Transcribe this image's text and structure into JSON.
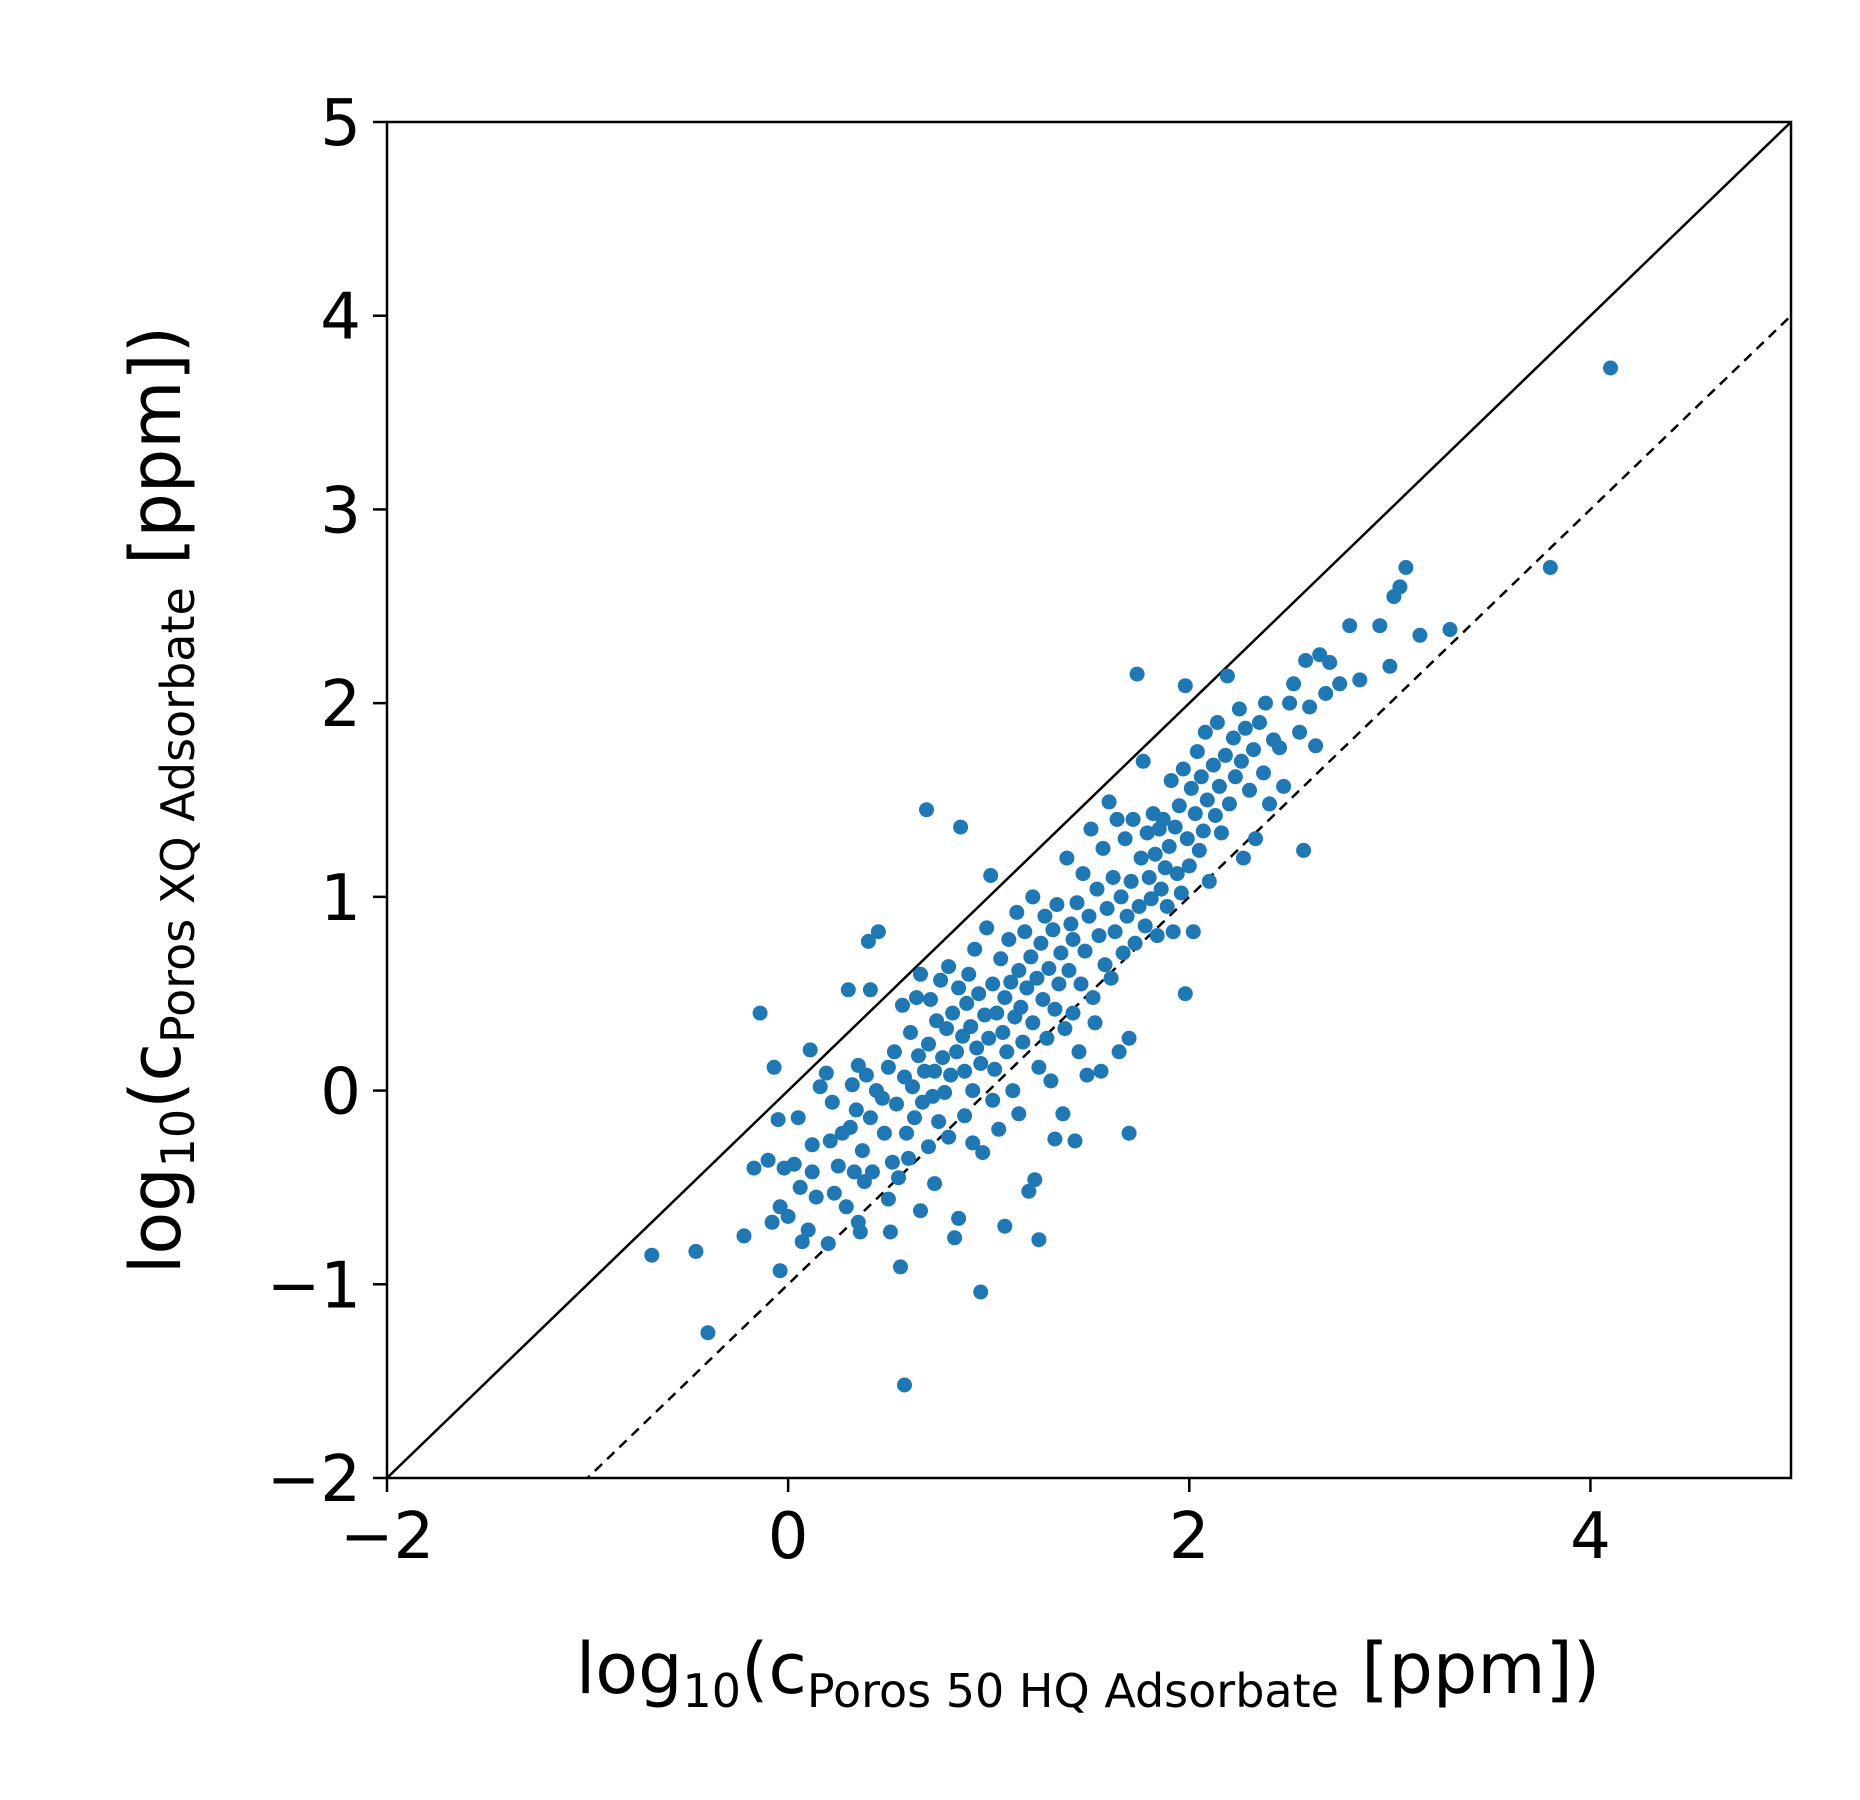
{
  "chart_data": {
    "type": "scatter",
    "title": "",
    "xlabel": {
      "prefix": "log",
      "base": "10",
      "open": "(c",
      "subscript": "Poros 50 HQ Adsorbate",
      "unit": " [ppm])"
    },
    "ylabel": {
      "prefix": "log",
      "base": "10",
      "open": "(c",
      "subscript": "Poros XQ Adsorbate",
      "unit": " [ppm])"
    },
    "xlim": [
      -2,
      5
    ],
    "ylim": [
      -2,
      5
    ],
    "x_ticks": [
      -2,
      0,
      2,
      4
    ],
    "x_tick_labels": [
      "−2",
      "0",
      "2",
      "4"
    ],
    "y_ticks": [
      -2,
      -1,
      0,
      1,
      2,
      3,
      4,
      5
    ],
    "y_tick_labels": [
      "−2",
      "−1",
      "0",
      "1",
      "2",
      "3",
      "4",
      "5"
    ],
    "grid": false,
    "marker_color": "#1f77b4",
    "reference_lines": [
      {
        "style": "solid",
        "slope": 1,
        "intercept": 0
      },
      {
        "style": "dashed",
        "slope": 1,
        "intercept": -1
      }
    ],
    "points": [
      [
        -0.68,
        -0.85
      ],
      [
        -0.46,
        -0.83
      ],
      [
        -0.4,
        -1.25
      ],
      [
        -0.22,
        -0.75
      ],
      [
        -0.17,
        -0.4
      ],
      [
        -0.14,
        0.4
      ],
      [
        -0.1,
        -0.36
      ],
      [
        -0.08,
        -0.68
      ],
      [
        -0.07,
        0.12
      ],
      [
        -0.05,
        -0.15
      ],
      [
        -0.04,
        -0.6
      ],
      [
        -0.04,
        -0.93
      ],
      [
        -0.02,
        -0.4
      ],
      [
        0.0,
        -0.65
      ],
      [
        0.03,
        -0.38
      ],
      [
        0.05,
        -0.14
      ],
      [
        0.06,
        -0.5
      ],
      [
        0.07,
        -0.78
      ],
      [
        0.1,
        -0.72
      ],
      [
        0.11,
        0.21
      ],
      [
        0.12,
        -0.42
      ],
      [
        0.12,
        -0.28
      ],
      [
        0.14,
        -0.55
      ],
      [
        0.16,
        0.02
      ],
      [
        0.19,
        0.09
      ],
      [
        0.2,
        -0.79
      ],
      [
        0.21,
        -0.26
      ],
      [
        0.22,
        -0.06
      ],
      [
        0.23,
        -0.53
      ],
      [
        0.25,
        -0.39
      ],
      [
        0.27,
        -0.22
      ],
      [
        0.29,
        -0.6
      ],
      [
        0.3,
        0.52
      ],
      [
        0.31,
        -0.19
      ],
      [
        0.32,
        0.03
      ],
      [
        0.33,
        -0.42
      ],
      [
        0.34,
        -0.1
      ],
      [
        0.35,
        0.13
      ],
      [
        0.35,
        -0.68
      ],
      [
        0.36,
        -0.73
      ],
      [
        0.37,
        -0.31
      ],
      [
        0.38,
        -0.47
      ],
      [
        0.39,
        0.08
      ],
      [
        0.4,
        0.77
      ],
      [
        0.41,
        -0.14
      ],
      [
        0.41,
        0.52
      ],
      [
        0.42,
        -0.42
      ],
      [
        0.44,
        0.0
      ],
      [
        0.45,
        0.82
      ],
      [
        0.47,
        -0.04
      ],
      [
        0.48,
        -0.22
      ],
      [
        0.5,
        -0.56
      ],
      [
        0.5,
        0.12
      ],
      [
        0.51,
        -0.73
      ],
      [
        0.52,
        -0.37
      ],
      [
        0.53,
        0.2
      ],
      [
        0.54,
        -0.07
      ],
      [
        0.55,
        -0.45
      ],
      [
        0.56,
        -0.91
      ],
      [
        0.57,
        0.44
      ],
      [
        0.58,
        -1.52
      ],
      [
        0.58,
        0.07
      ],
      [
        0.59,
        -0.22
      ],
      [
        0.6,
        -0.35
      ],
      [
        0.61,
        0.3
      ],
      [
        0.62,
        0.02
      ],
      [
        0.63,
        -0.14
      ],
      [
        0.64,
        0.48
      ],
      [
        0.65,
        0.18
      ],
      [
        0.66,
        -0.62
      ],
      [
        0.66,
        0.6
      ],
      [
        0.67,
        -0.06
      ],
      [
        0.68,
        0.1
      ],
      [
        0.69,
        1.45
      ],
      [
        0.7,
        0.24
      ],
      [
        0.7,
        -0.29
      ],
      [
        0.71,
        0.47
      ],
      [
        0.72,
        -0.03
      ],
      [
        0.73,
        0.1
      ],
      [
        0.73,
        -0.48
      ],
      [
        0.74,
        0.36
      ],
      [
        0.75,
        -0.16
      ],
      [
        0.76,
        0.57
      ],
      [
        0.77,
        0.17
      ],
      [
        0.78,
        -0.01
      ],
      [
        0.79,
        0.32
      ],
      [
        0.8,
        0.64
      ],
      [
        0.8,
        -0.24
      ],
      [
        0.81,
        0.08
      ],
      [
        0.82,
        0.4
      ],
      [
        0.83,
        -0.76
      ],
      [
        0.84,
        0.2
      ],
      [
        0.85,
        -0.66
      ],
      [
        0.85,
        0.53
      ],
      [
        0.86,
        1.36
      ],
      [
        0.87,
        0.28
      ],
      [
        0.88,
        -0.13
      ],
      [
        0.88,
        0.1
      ],
      [
        0.89,
        0.45
      ],
      [
        0.9,
        0.6
      ],
      [
        0.91,
        0.33
      ],
      [
        0.92,
        0.0
      ],
      [
        0.92,
        -0.27
      ],
      [
        0.93,
        0.73
      ],
      [
        0.94,
        0.22
      ],
      [
        0.95,
        0.5
      ],
      [
        0.96,
        0.14
      ],
      [
        0.96,
        -1.04
      ],
      [
        0.97,
        -0.32
      ],
      [
        0.98,
        0.39
      ],
      [
        0.99,
        0.84
      ],
      [
        1.0,
        0.27
      ],
      [
        1.01,
        1.11
      ],
      [
        1.02,
        0.55
      ],
      [
        1.02,
        -0.05
      ],
      [
        1.03,
        0.11
      ],
      [
        1.04,
        0.4
      ],
      [
        1.05,
        -0.2
      ],
      [
        1.06,
        0.68
      ],
      [
        1.07,
        0.3
      ],
      [
        1.08,
        -0.7
      ],
      [
        1.08,
        0.48
      ],
      [
        1.09,
        0.2
      ],
      [
        1.1,
        0.78
      ],
      [
        1.11,
        0.56
      ],
      [
        1.12,
        0.0
      ],
      [
        1.13,
        0.38
      ],
      [
        1.14,
        0.92
      ],
      [
        1.15,
        0.62
      ],
      [
        1.15,
        -0.12
      ],
      [
        1.16,
        0.43
      ],
      [
        1.17,
        0.25
      ],
      [
        1.18,
        0.82
      ],
      [
        1.19,
        0.53
      ],
      [
        1.2,
        -0.52
      ],
      [
        1.21,
        0.69
      ],
      [
        1.22,
        0.35
      ],
      [
        1.22,
        1.0
      ],
      [
        1.23,
        -0.46
      ],
      [
        1.24,
        0.58
      ],
      [
        1.25,
        0.12
      ],
      [
        1.25,
        -0.77
      ],
      [
        1.26,
        0.76
      ],
      [
        1.27,
        0.47
      ],
      [
        1.28,
        0.9
      ],
      [
        1.29,
        0.27
      ],
      [
        1.3,
        0.63
      ],
      [
        1.31,
        0.05
      ],
      [
        1.32,
        0.83
      ],
      [
        1.33,
        0.42
      ],
      [
        1.33,
        -0.25
      ],
      [
        1.34,
        0.96
      ],
      [
        1.35,
        0.55
      ],
      [
        1.36,
        0.71
      ],
      [
        1.37,
        -0.12
      ],
      [
        1.38,
        0.32
      ],
      [
        1.39,
        1.2
      ],
      [
        1.4,
        0.62
      ],
      [
        1.41,
        0.86
      ],
      [
        1.42,
        0.4
      ],
      [
        1.42,
        0.78
      ],
      [
        1.43,
        -0.26
      ],
      [
        1.44,
        0.97
      ],
      [
        1.45,
        0.2
      ],
      [
        1.46,
        0.55
      ],
      [
        1.47,
        1.12
      ],
      [
        1.48,
        0.72
      ],
      [
        1.49,
        0.08
      ],
      [
        1.5,
        0.9
      ],
      [
        1.51,
        1.35
      ],
      [
        1.52,
        0.48
      ],
      [
        1.53,
        0.35
      ],
      [
        1.54,
        1.04
      ],
      [
        1.55,
        0.8
      ],
      [
        1.56,
        0.1
      ],
      [
        1.57,
        1.25
      ],
      [
        1.58,
        0.65
      ],
      [
        1.59,
        0.94
      ],
      [
        1.6,
        1.49
      ],
      [
        1.61,
        0.58
      ],
      [
        1.62,
        1.1
      ],
      [
        1.63,
        0.82
      ],
      [
        1.64,
        1.4
      ],
      [
        1.65,
        0.2
      ],
      [
        1.66,
        1.0
      ],
      [
        1.67,
        0.71
      ],
      [
        1.68,
        1.3
      ],
      [
        1.69,
        0.9
      ],
      [
        1.7,
        0.27
      ],
      [
        1.7,
        -0.22
      ],
      [
        1.71,
        1.08
      ],
      [
        1.72,
        1.4
      ],
      [
        1.73,
        0.76
      ],
      [
        1.74,
        2.15
      ],
      [
        1.75,
        0.95
      ],
      [
        1.76,
        1.2
      ],
      [
        1.77,
        1.7
      ],
      [
        1.78,
        0.85
      ],
      [
        1.79,
        1.33
      ],
      [
        1.8,
        1.1
      ],
      [
        1.81,
        0.99
      ],
      [
        1.82,
        1.43
      ],
      [
        1.83,
        1.22
      ],
      [
        1.84,
        0.8
      ],
      [
        1.85,
        1.35
      ],
      [
        1.86,
        1.04
      ],
      [
        1.87,
        1.4
      ],
      [
        1.88,
        1.15
      ],
      [
        1.89,
        0.95
      ],
      [
        1.9,
        1.26
      ],
      [
        1.91,
        1.6
      ],
      [
        1.92,
        0.82
      ],
      [
        1.93,
        1.36
      ],
      [
        1.94,
        1.12
      ],
      [
        1.95,
        1.47
      ],
      [
        1.96,
        1.02
      ],
      [
        1.97,
        1.66
      ],
      [
        1.98,
        2.09
      ],
      [
        1.98,
        0.5
      ],
      [
        1.99,
        1.3
      ],
      [
        2.0,
        1.16
      ],
      [
        2.01,
        1.56
      ],
      [
        2.02,
        0.82
      ],
      [
        2.03,
        1.43
      ],
      [
        2.04,
        1.75
      ],
      [
        2.05,
        1.24
      ],
      [
        2.06,
        1.62
      ],
      [
        2.07,
        1.34
      ],
      [
        2.08,
        1.85
      ],
      [
        2.09,
        1.5
      ],
      [
        2.1,
        1.08
      ],
      [
        2.12,
        1.68
      ],
      [
        2.13,
        1.42
      ],
      [
        2.14,
        1.9
      ],
      [
        2.15,
        1.57
      ],
      [
        2.16,
        1.33
      ],
      [
        2.18,
        1.73
      ],
      [
        2.19,
        2.14
      ],
      [
        2.2,
        1.48
      ],
      [
        2.22,
        1.82
      ],
      [
        2.23,
        1.62
      ],
      [
        2.25,
        1.97
      ],
      [
        2.26,
        1.7
      ],
      [
        2.27,
        1.2
      ],
      [
        2.28,
        1.87
      ],
      [
        2.3,
        1.55
      ],
      [
        2.32,
        1.76
      ],
      [
        2.33,
        1.3
      ],
      [
        2.35,
        1.9
      ],
      [
        2.37,
        1.64
      ],
      [
        2.38,
        2.0
      ],
      [
        2.4,
        1.48
      ],
      [
        2.42,
        1.81
      ],
      [
        2.45,
        1.77
      ],
      [
        2.47,
        1.57
      ],
      [
        2.5,
        2.0
      ],
      [
        2.52,
        2.1
      ],
      [
        2.55,
        1.85
      ],
      [
        2.57,
        1.24
      ],
      [
        2.58,
        2.22
      ],
      [
        2.6,
        1.98
      ],
      [
        2.63,
        1.78
      ],
      [
        2.65,
        2.25
      ],
      [
        2.68,
        2.05
      ],
      [
        2.7,
        2.21
      ],
      [
        2.75,
        2.1
      ],
      [
        2.8,
        2.4
      ],
      [
        2.85,
        2.12
      ],
      [
        2.95,
        2.4
      ],
      [
        3.0,
        2.19
      ],
      [
        3.02,
        2.55
      ],
      [
        3.05,
        2.6
      ],
      [
        3.08,
        2.7
      ],
      [
        3.15,
        2.35
      ],
      [
        3.3,
        2.38
      ],
      [
        3.8,
        2.7
      ],
      [
        4.1,
        3.73
      ]
    ]
  }
}
